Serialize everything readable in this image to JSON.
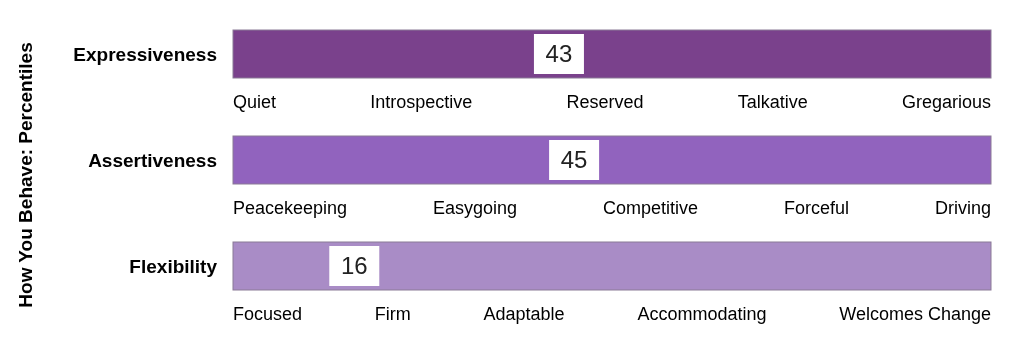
{
  "chart_data": [
    {
      "type": "other",
      "ylabel": "How You Behave: Percentiles",
      "categories": [
        "Expressiveness"
      ],
      "values": [
        43
      ],
      "colors": [
        "#ffffff"
      ],
      "data_labels": true,
      "annotations": [
        "Quiet",
        "Introspective",
        "Reserved",
        "Talkative",
        "Gregarious"
      ]
    },
    {
      "type": "other",
      "categories": [
        "Assertiveness"
      ],
      "values": [
        45
      ],
      "colors": [
        "#ffffff"
      ],
      "data_labels": true,
      "annotations": [
        "Peacekeeping",
        "Easygoing",
        "Competitive",
        "Forceful",
        "Driving"
      ]
    },
    {
      "type": "other",
      "categories": [
        "Flexibility"
      ],
      "values": [
        16
      ],
      "colors": [
        "#ffffff"
      ],
      "data_labels": true,
      "annotations": [
        "Focused",
        "Firm",
        "Adaptable",
        "Accommodating",
        "Welcomes Change"
      ]
    }
  ]
}
